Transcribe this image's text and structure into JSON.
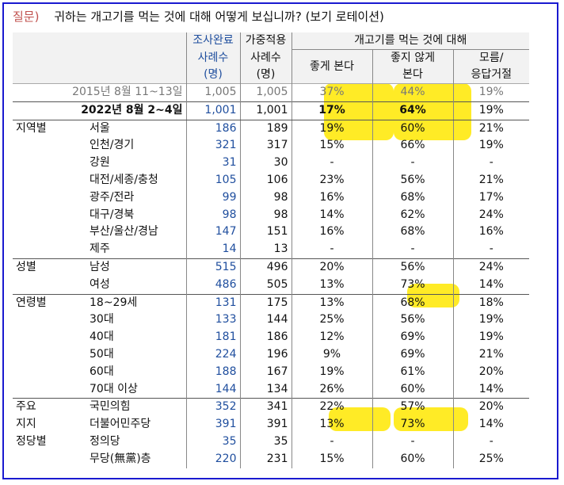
{
  "question": {
    "label": "질문)",
    "text": "귀하는 개고기를 먹는 것에 대해 어떻게 보십니까? (보기 로테이션)"
  },
  "header": {
    "col_surveyed": [
      "조사완료",
      "사례수",
      "(명)"
    ],
    "col_weighted": [
      "가중적용",
      "사례수",
      "(명)"
    ],
    "group_title": "개고기를 먹는 것에 대해",
    "col_good": "좋게 본다",
    "col_bad": [
      "좋지 않게",
      "본다"
    ],
    "col_unknown": [
      "모름/",
      "응답거절"
    ]
  },
  "rows": [
    {
      "group": "",
      "sub": "2015년 8월 11~13일",
      "n": "1,005",
      "w": "1,005",
      "good": "37%",
      "bad": "44%",
      "unk": "19%"
    },
    {
      "group": "",
      "sub": "2022년 8월 2~4일",
      "n": "1,001",
      "w": "1,001",
      "good": "17%",
      "bad": "64%",
      "unk": "19%"
    },
    {
      "group": "지역별",
      "sub": "서울",
      "n": "186",
      "w": "189",
      "good": "19%",
      "bad": "60%",
      "unk": "21%"
    },
    {
      "group": "",
      "sub": "인천/경기",
      "n": "321",
      "w": "317",
      "good": "15%",
      "bad": "66%",
      "unk": "19%"
    },
    {
      "group": "",
      "sub": "강원",
      "n": "31",
      "w": "30",
      "good": "-",
      "bad": "-",
      "unk": "-"
    },
    {
      "group": "",
      "sub": "대전/세종/충청",
      "n": "105",
      "w": "106",
      "good": "23%",
      "bad": "56%",
      "unk": "21%"
    },
    {
      "group": "",
      "sub": "광주/전라",
      "n": "99",
      "w": "98",
      "good": "16%",
      "bad": "68%",
      "unk": "17%"
    },
    {
      "group": "",
      "sub": "대구/경북",
      "n": "98",
      "w": "98",
      "good": "14%",
      "bad": "62%",
      "unk": "24%"
    },
    {
      "group": "",
      "sub": "부산/울산/경남",
      "n": "147",
      "w": "151",
      "good": "16%",
      "bad": "68%",
      "unk": "16%"
    },
    {
      "group": "",
      "sub": "제주",
      "n": "14",
      "w": "13",
      "good": "-",
      "bad": "-",
      "unk": "-"
    },
    {
      "group": "성별",
      "sub": "남성",
      "n": "515",
      "w": "496",
      "good": "20%",
      "bad": "56%",
      "unk": "24%"
    },
    {
      "group": "",
      "sub": "여성",
      "n": "486",
      "w": "505",
      "good": "13%",
      "bad": "73%",
      "unk": "14%"
    },
    {
      "group": "연령별",
      "sub": "18~29세",
      "n": "131",
      "w": "175",
      "good": "13%",
      "bad": "68%",
      "unk": "18%"
    },
    {
      "group": "",
      "sub": "30대",
      "n": "133",
      "w": "144",
      "good": "25%",
      "bad": "56%",
      "unk": "19%"
    },
    {
      "group": "",
      "sub": "40대",
      "n": "181",
      "w": "186",
      "good": "12%",
      "bad": "69%",
      "unk": "19%"
    },
    {
      "group": "",
      "sub": "50대",
      "n": "224",
      "w": "196",
      "good": "9%",
      "bad": "69%",
      "unk": "21%"
    },
    {
      "group": "",
      "sub": "60대",
      "n": "188",
      "w": "167",
      "good": "19%",
      "bad": "61%",
      "unk": "20%"
    },
    {
      "group": "",
      "sub": "70대 이상",
      "n": "144",
      "w": "134",
      "good": "26%",
      "bad": "60%",
      "unk": "14%"
    },
    {
      "group": "주요",
      "sub": "국민의힘",
      "n": "352",
      "w": "341",
      "good": "22%",
      "bad": "57%",
      "unk": "20%"
    },
    {
      "group": "지지",
      "sub": "더불어민주당",
      "n": "391",
      "w": "391",
      "good": "13%",
      "bad": "73%",
      "unk": "14%"
    },
    {
      "group": "정당별",
      "sub": "정의당",
      "n": "35",
      "w": "35",
      "good": "-",
      "bad": "-",
      "unk": "-"
    },
    {
      "group": "",
      "sub": "무당(無黨)층",
      "n": "220",
      "w": "231",
      "good": "15%",
      "bad": "60%",
      "unk": "25%"
    }
  ],
  "colors": {
    "frame": "#1a1ad0",
    "question_label": "#c0504d",
    "count_blue": "#1f4e9e",
    "highlight": "#ffe800"
  }
}
